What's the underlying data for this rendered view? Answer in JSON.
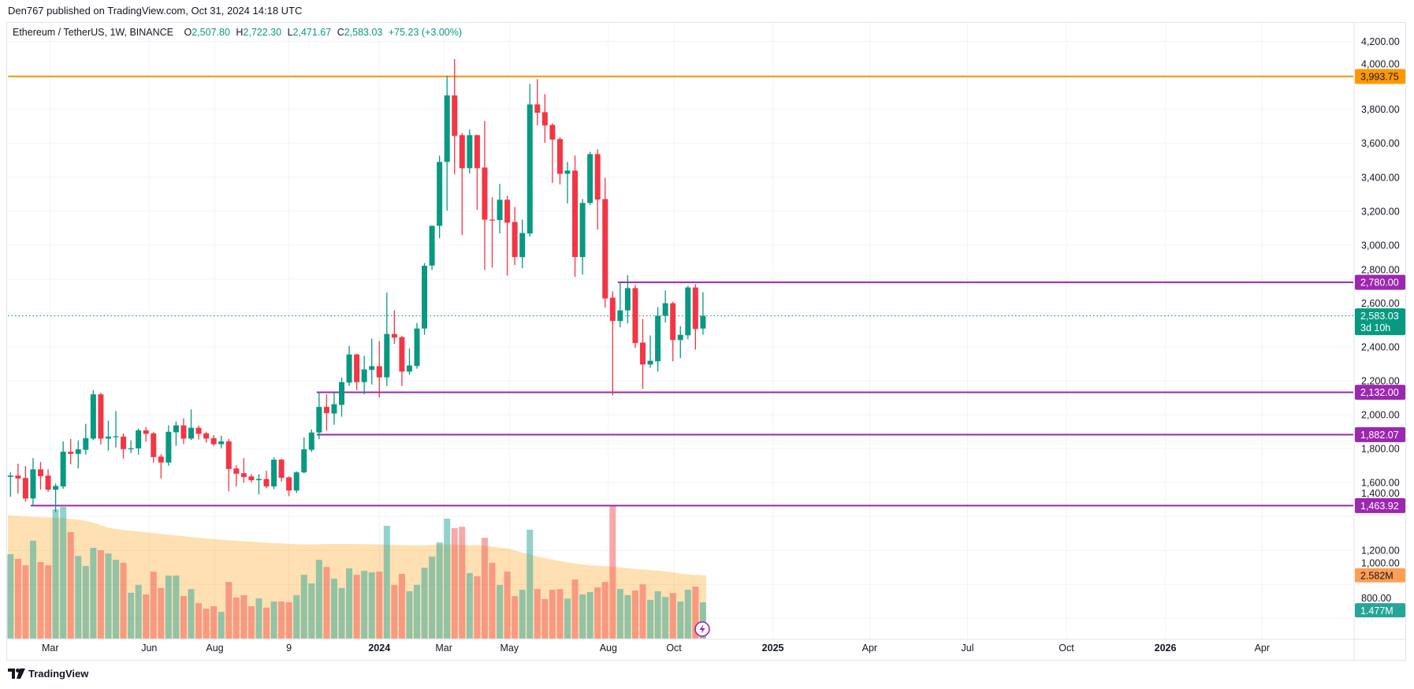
{
  "publish_line": "Den767 published on TradingView.com, Oct 31, 2024 14:18 UTC",
  "legend": {
    "symbol": "Ethereum / TetherUS, 1W, BINANCE",
    "open_label": "O",
    "open": "2,507.80",
    "high_label": "H",
    "high": "2,722.30",
    "low_label": "L",
    "low": "2,471.67",
    "close_label": "C",
    "close": "2,583.03",
    "change": "+75.23 (+3.00%)"
  },
  "logo": {
    "text": "TradingView"
  },
  "colors": {
    "up": "#089981",
    "down": "#f23645",
    "resistance": "#ff9800",
    "levels": "#9c27b0",
    "volume_ma": "#ff9800"
  },
  "chart_data": {
    "type": "candlestick",
    "interval": "1W",
    "y_axis": {
      "range": [
        700,
        4300
      ],
      "ticks": [
        "4,200.00",
        "4,000.00",
        "3,800.00",
        "3,600.00",
        "3,400.00",
        "3,200.00",
        "3,000.00",
        "2,800.00",
        "2,600.00",
        "2,400.00",
        "2,200.00",
        "2,000.00",
        "1,800.00",
        "1,600.00",
        "1,400.00",
        "1,200.00",
        "1,000.00",
        "800.00"
      ],
      "tick_values": [
        4200,
        4000,
        3800,
        3600,
        3400,
        3200,
        3000,
        2800,
        2600,
        2400,
        2200,
        2000,
        1800,
        1600,
        1400,
        1200,
        1000,
        800
      ]
    },
    "x_axis": {
      "ticks": [
        {
          "label": "Mar",
          "date": "2023-03-01",
          "bold": false
        },
        {
          "label": "Jun",
          "date": "2023-06-01",
          "bold": false
        },
        {
          "label": "Aug",
          "date": "2023-08-01",
          "bold": false
        },
        {
          "label": "9",
          "date": "2023-10-09",
          "bold": false
        },
        {
          "label": "2024",
          "date": "2024-01-01",
          "bold": true
        },
        {
          "label": "Mar",
          "date": "2024-03-01",
          "bold": false
        },
        {
          "label": "May",
          "date": "2024-05-01",
          "bold": false
        },
        {
          "label": "Aug",
          "date": "2024-08-01",
          "bold": false
        },
        {
          "label": "Oct",
          "date": "2024-10-01",
          "bold": false
        },
        {
          "label": "2025",
          "date": "2025-01-01",
          "bold": true
        },
        {
          "label": "Apr",
          "date": "2025-04-01",
          "bold": false
        },
        {
          "label": "Jul",
          "date": "2025-07-01",
          "bold": false
        },
        {
          "label": "Oct",
          "date": "2025-10-01",
          "bold": false
        },
        {
          "label": "2026",
          "date": "2026-01-01",
          "bold": true
        },
        {
          "label": "Apr",
          "date": "2026-04-01",
          "bold": false
        }
      ]
    },
    "candle_fields": [
      "week",
      "open",
      "high",
      "low",
      "close",
      "volume_M",
      "volume_ma_M"
    ],
    "candles": [
      [
        "2023-01-23",
        1633,
        1660,
        1516,
        1641,
        3.44,
        5.02
      ],
      [
        "2023-01-30",
        1641,
        1711,
        1534,
        1624,
        3.25,
        5.0
      ],
      [
        "2023-02-06",
        1627,
        1697,
        1487,
        1506,
        2.99,
        4.98
      ],
      [
        "2023-02-13",
        1506,
        1744,
        1459,
        1678,
        3.99,
        4.96
      ],
      [
        "2023-02-20",
        1678,
        1721,
        1558,
        1638,
        3.12,
        4.95
      ],
      [
        "2023-02-27",
        1641,
        1678,
        1545,
        1558,
        2.99,
        4.94
      ],
      [
        "2023-03-06",
        1558,
        1594,
        1425,
        1580,
        5.27,
        4.93
      ],
      [
        "2023-03-13",
        1577,
        1843,
        1563,
        1782,
        5.37,
        4.91
      ],
      [
        "2023-03-20",
        1782,
        1857,
        1707,
        1769,
        4.34,
        4.88
      ],
      [
        "2023-03-27",
        1769,
        1848,
        1683,
        1796,
        3.37,
        4.85
      ],
      [
        "2023-04-03",
        1793,
        1946,
        1765,
        1862,
        2.96,
        4.8
      ],
      [
        "2023-04-10",
        1859,
        2144,
        1849,
        2120,
        3.7,
        4.73
      ],
      [
        "2023-04-17",
        2120,
        2129,
        1824,
        1859,
        3.6,
        4.62
      ],
      [
        "2023-04-24",
        1859,
        1965,
        1788,
        1871,
        3.47,
        4.52
      ],
      [
        "2023-05-01",
        1871,
        2021,
        1807,
        1873,
        3.21,
        4.47
      ],
      [
        "2023-05-08",
        1871,
        1890,
        1741,
        1797,
        3.09,
        4.43
      ],
      [
        "2023-05-15",
        1797,
        1848,
        1774,
        1802,
        1.87,
        4.4
      ],
      [
        "2023-05-22",
        1802,
        1918,
        1765,
        1908,
        2.19,
        4.37
      ],
      [
        "2023-05-29",
        1908,
        1927,
        1840,
        1887,
        1.8,
        4.33
      ],
      [
        "2023-06-05",
        1890,
        1899,
        1718,
        1750,
        2.73,
        4.3
      ],
      [
        "2023-06-12",
        1753,
        1767,
        1624,
        1718,
        2.06,
        4.27
      ],
      [
        "2023-06-19",
        1718,
        1937,
        1699,
        1899,
        2.57,
        4.24
      ],
      [
        "2023-06-26",
        1896,
        1960,
        1816,
        1937,
        2.57,
        4.2
      ],
      [
        "2023-07-03",
        1937,
        1979,
        1827,
        1859,
        1.74,
        4.17
      ],
      [
        "2023-07-10",
        1859,
        2031,
        1851,
        1923,
        2.02,
        4.14
      ],
      [
        "2023-07-17",
        1923,
        1937,
        1854,
        1887,
        1.45,
        4.11
      ],
      [
        "2023-07-24",
        1890,
        1900,
        1835,
        1859,
        1.22,
        4.08
      ],
      [
        "2023-07-31",
        1862,
        1879,
        1816,
        1826,
        1.32,
        4.06
      ],
      [
        "2023-08-07",
        1826,
        1876,
        1802,
        1843,
        1.09,
        4.03
      ],
      [
        "2023-08-14",
        1843,
        1857,
        1548,
        1680,
        2.31,
        4.01
      ],
      [
        "2023-08-21",
        1683,
        1702,
        1577,
        1652,
        1.67,
        3.99
      ],
      [
        "2023-08-28",
        1655,
        1744,
        1600,
        1633,
        1.77,
        3.97
      ],
      [
        "2023-09-04",
        1636,
        1650,
        1600,
        1614,
        1.32,
        3.95
      ],
      [
        "2023-09-11",
        1614,
        1650,
        1530,
        1621,
        1.64,
        3.93
      ],
      [
        "2023-09-18",
        1621,
        1669,
        1567,
        1577,
        1.26,
        3.91
      ],
      [
        "2023-09-25",
        1577,
        1749,
        1561,
        1735,
        1.51,
        3.89
      ],
      [
        "2023-10-02",
        1735,
        1741,
        1605,
        1628,
        1.51,
        3.88
      ],
      [
        "2023-10-09",
        1631,
        1636,
        1520,
        1553,
        1.48,
        3.86
      ],
      [
        "2023-10-16",
        1553,
        1666,
        1539,
        1660,
        1.77,
        3.85
      ],
      [
        "2023-10-23",
        1660,
        1866,
        1655,
        1796,
        2.6,
        3.84
      ],
      [
        "2023-10-30",
        1793,
        1913,
        1780,
        1895,
        2.25,
        3.84
      ],
      [
        "2023-11-06",
        1895,
        2136,
        1855,
        2046,
        3.21,
        3.85
      ],
      [
        "2023-11-13",
        2046,
        2121,
        1905,
        2009,
        2.92,
        3.86
      ],
      [
        "2023-11-20",
        2007,
        2130,
        1941,
        2062,
        2.44,
        3.86
      ],
      [
        "2023-11-27",
        2058,
        2220,
        1988,
        2192,
        2.06,
        3.86
      ],
      [
        "2023-12-04",
        2189,
        2406,
        2170,
        2355,
        2.86,
        3.86
      ],
      [
        "2023-12-11",
        2355,
        2360,
        2146,
        2192,
        2.6,
        3.85
      ],
      [
        "2023-12-18",
        2192,
        2347,
        2120,
        2267,
        2.76,
        3.85
      ],
      [
        "2023-12-25",
        2264,
        2449,
        2178,
        2286,
        2.7,
        3.84
      ],
      [
        "2024-01-01",
        2286,
        2434,
        2101,
        2220,
        2.73,
        3.84
      ],
      [
        "2024-01-08",
        2220,
        2719,
        2169,
        2476,
        4.6,
        3.83
      ],
      [
        "2024-01-15",
        2476,
        2615,
        2417,
        2454,
        2.19,
        3.82
      ],
      [
        "2024-01-22",
        2457,
        2465,
        2169,
        2254,
        2.64,
        3.81
      ],
      [
        "2024-01-29",
        2254,
        2390,
        2236,
        2290,
        1.93,
        3.8
      ],
      [
        "2024-02-05",
        2287,
        2541,
        2271,
        2508,
        2.19,
        3.79
      ],
      [
        "2024-02-12",
        2508,
        2894,
        2471,
        2878,
        2.89,
        3.8
      ],
      [
        "2024-02-19",
        2879,
        3116,
        2853,
        3113,
        3.34,
        3.82
      ],
      [
        "2024-02-26",
        3113,
        3527,
        3040,
        3490,
        3.92,
        3.84
      ],
      [
        "2024-03-04",
        3490,
        3998,
        3203,
        3882,
        4.89,
        3.84
      ],
      [
        "2024-03-11",
        3882,
        4096,
        3417,
        3643,
        4.5,
        3.83
      ],
      [
        "2024-03-18",
        3648,
        3660,
        3059,
        3453,
        4.56,
        3.82
      ],
      [
        "2024-03-25",
        3453,
        3681,
        3422,
        3648,
        2.67,
        3.81
      ],
      [
        "2024-04-01",
        3648,
        3650,
        3208,
        3453,
        2.54,
        3.81
      ],
      [
        "2024-04-08",
        3457,
        3732,
        2854,
        3150,
        4.11,
        3.78
      ],
      [
        "2024-04-15",
        3150,
        3281,
        2867,
        3148,
        3.09,
        3.75
      ],
      [
        "2024-04-22",
        3147,
        3360,
        3068,
        3267,
        2.19,
        3.71
      ],
      [
        "2024-04-29",
        3267,
        3290,
        2820,
        3132,
        2.73,
        3.68
      ],
      [
        "2024-05-06",
        3136,
        3225,
        2882,
        2929,
        1.73,
        3.6
      ],
      [
        "2024-05-13",
        2929,
        3150,
        2863,
        3071,
        1.99,
        3.5
      ],
      [
        "2024-05-20",
        3068,
        3950,
        3050,
        3829,
        4.44,
        3.44
      ],
      [
        "2024-05-27",
        3829,
        3978,
        3705,
        3780,
        2.02,
        3.34
      ],
      [
        "2024-06-03",
        3783,
        3890,
        3603,
        3705,
        1.61,
        3.28
      ],
      [
        "2024-06-10",
        3708,
        3718,
        3366,
        3622,
        1.99,
        3.22
      ],
      [
        "2024-06-17",
        3625,
        3637,
        3357,
        3420,
        2.02,
        3.16
      ],
      [
        "2024-06-24",
        3420,
        3490,
        3245,
        3439,
        1.63,
        3.11
      ],
      [
        "2024-07-01",
        3439,
        3527,
        2812,
        2929,
        2.41,
        3.06
      ],
      [
        "2024-07-08",
        2929,
        3271,
        2826,
        3248,
        1.8,
        3.02
      ],
      [
        "2024-07-15",
        3248,
        3550,
        3236,
        3536,
        1.9,
        2.99
      ],
      [
        "2024-07-22",
        3536,
        3564,
        3091,
        3268,
        2.09,
        2.97
      ],
      [
        "2024-07-29",
        3271,
        3398,
        2631,
        2685,
        2.31,
        2.95
      ],
      [
        "2024-08-05",
        2690,
        2727,
        2115,
        2552,
        5.4,
        2.93
      ],
      [
        "2024-08-12",
        2552,
        2783,
        2515,
        2615,
        2.02,
        2.9
      ],
      [
        "2024-08-19",
        2615,
        2822,
        2538,
        2746,
        1.77,
        2.87
      ],
      [
        "2024-08-26",
        2746,
        2764,
        2394,
        2422,
        1.96,
        2.84
      ],
      [
        "2024-09-02",
        2425,
        2564,
        2152,
        2296,
        2.21,
        2.82
      ],
      [
        "2024-09-09",
        2296,
        2467,
        2277,
        2318,
        1.58,
        2.79
      ],
      [
        "2024-09-16",
        2315,
        2634,
        2254,
        2583,
        1.93,
        2.77
      ],
      [
        "2024-09-23",
        2583,
        2732,
        2543,
        2657,
        1.7,
        2.74
      ],
      [
        "2024-09-30",
        2657,
        2666,
        2315,
        2440,
        1.86,
        2.7
      ],
      [
        "2024-10-07",
        2440,
        2522,
        2333,
        2471,
        1.51,
        2.65
      ],
      [
        "2024-10-14",
        2468,
        2760,
        2445,
        2750,
        1.99,
        2.62
      ],
      [
        "2024-10-21",
        2750,
        2769,
        2384,
        2505,
        2.12,
        2.6
      ],
      [
        "2024-10-28",
        2507.8,
        2722.3,
        2471.67,
        2583.03,
        1.477,
        2.582
      ]
    ],
    "horizontal_levels": [
      {
        "value": 3993.75,
        "label": "3,993.75",
        "color": "#ff9800",
        "from": "2023-01-23"
      },
      {
        "value": 2780.0,
        "label": "2,780.00",
        "color": "#9c27b0",
        "from": "2024-08-12"
      },
      {
        "value": 2132.0,
        "label": "2,132.00",
        "color": "#9c27b0",
        "from": "2023-11-06"
      },
      {
        "value": 1882.07,
        "label": "1,882.07",
        "color": "#9c27b0",
        "from": "2023-11-06"
      },
      {
        "value": 1463.92,
        "label": "1,463.92",
        "color": "#9c27b0",
        "from": "2023-02-13"
      }
    ],
    "last_price": {
      "value": 2583.03,
      "label": "2,583.03",
      "countdown": "3d 10h",
      "color": "#089981"
    },
    "volume_labels": {
      "ma": "2.582M",
      "ma_color": "#ff9f55",
      "last": "1.477M",
      "last_color": "#26a69a"
    }
  }
}
